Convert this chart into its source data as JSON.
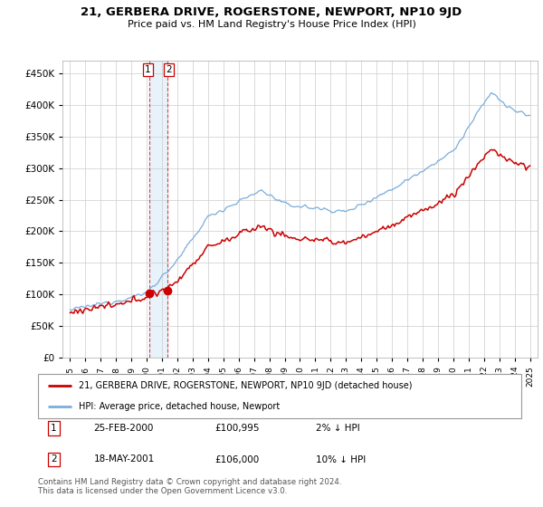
{
  "title": "21, GERBERA DRIVE, ROGERSTONE, NEWPORT, NP10 9JD",
  "subtitle": "Price paid vs. HM Land Registry's House Price Index (HPI)",
  "sale1_price": 100995,
  "sale2_price": 106000,
  "legend_red": "21, GERBERA DRIVE, ROGERSTONE, NEWPORT, NP10 9JD (detached house)",
  "legend_blue": "HPI: Average price, detached house, Newport",
  "table_row1": [
    "1",
    "25-FEB-2000",
    "£100,995",
    "2% ↓ HPI"
  ],
  "table_row2": [
    "2",
    "18-MAY-2001",
    "£106,000",
    "10% ↓ HPI"
  ],
  "footer": "Contains HM Land Registry data © Crown copyright and database right 2024.\nThis data is licensed under the Open Government Licence v3.0.",
  "red_color": "#cc0000",
  "blue_color": "#7aaddb",
  "sale1_x": 2000.15,
  "sale2_x": 2001.37,
  "xlim_left": 1994.5,
  "xlim_right": 2025.5,
  "ylim_bottom": 0,
  "ylim_top": 470000
}
